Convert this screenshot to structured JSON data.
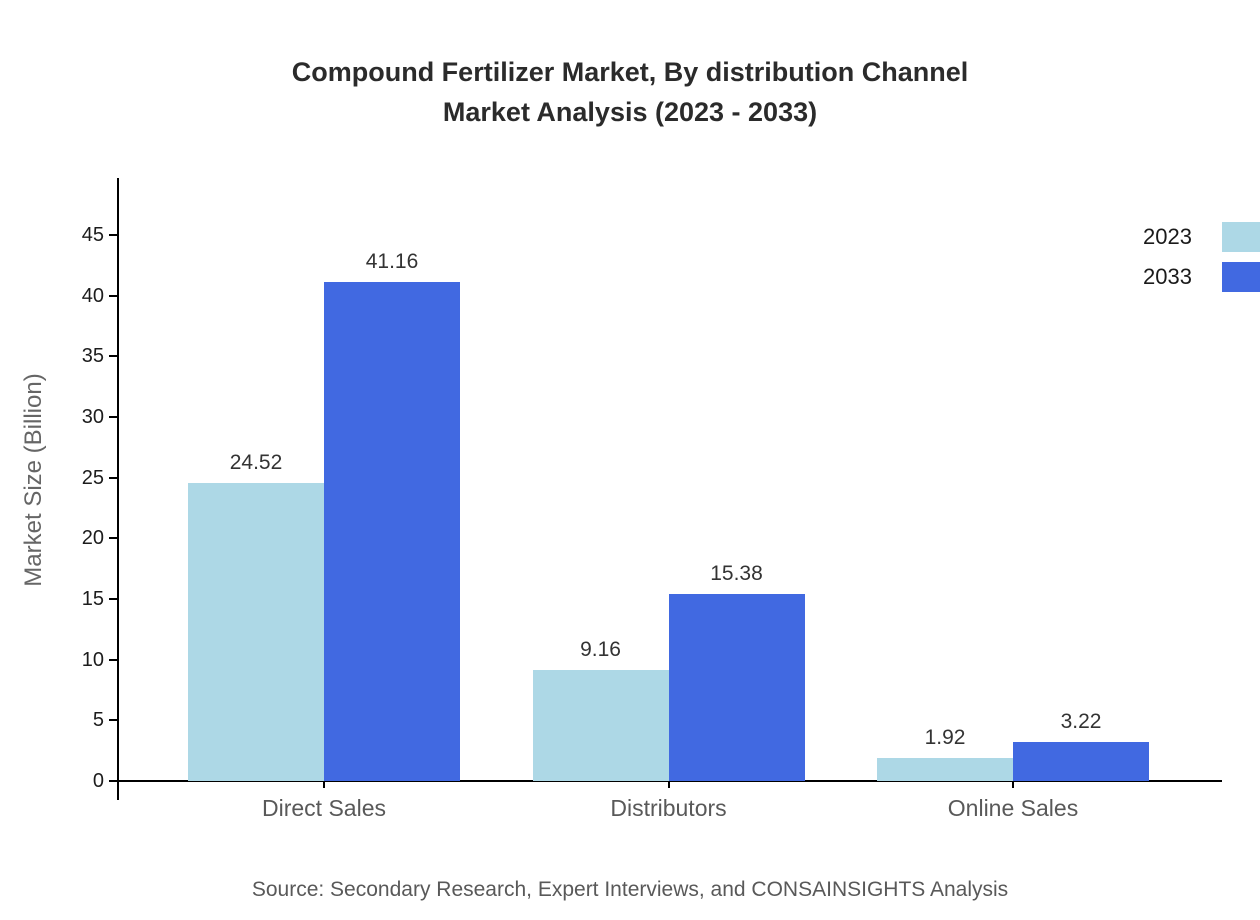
{
  "title": {
    "line1": "Compound Fertilizer Market, By distribution Channel",
    "line2": "Market Analysis (2023 - 2033)"
  },
  "source": "Source: Secondary Research, Expert Interviews, and CONSAINSIGHTS Analysis",
  "chart_data": {
    "type": "bar",
    "title": "Compound Fertilizer Market, By distribution Channel Market Analysis (2023 - 2033)",
    "categories": [
      "Direct Sales",
      "Distributors",
      "Online Sales"
    ],
    "series": [
      {
        "name": "2023",
        "color": "#add8e6",
        "values": [
          24.52,
          9.16,
          1.92
        ]
      },
      {
        "name": "2033",
        "color": "#4169e1",
        "values": [
          41.16,
          15.38,
          3.22
        ]
      }
    ],
    "value_labels": [
      "24.52",
      "41.16",
      "9.16",
      "15.38",
      "1.92",
      "3.22"
    ],
    "xlabel": "",
    "ylabel": "Market Size (Billion)",
    "ylim": [
      0,
      45
    ],
    "yticks": [
      0,
      5,
      10,
      15,
      20,
      25,
      30,
      35,
      40,
      45
    ],
    "grid": false,
    "legend_position": "top-right"
  }
}
